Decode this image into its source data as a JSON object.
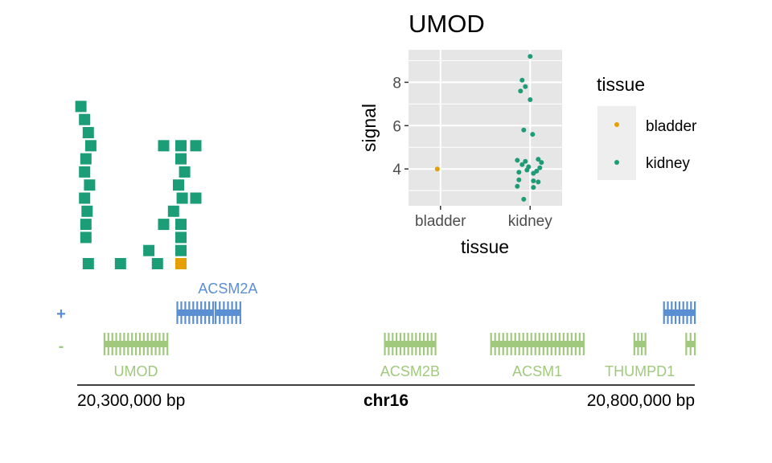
{
  "colors": {
    "bladder": "#E69F00",
    "kidney": "#1B9E77",
    "strand_plus": "#5B8FD3",
    "strand_minus": "#A1C97E",
    "panel_bg": "#E6E6E6",
    "legend_bg": "#EEEEEE"
  },
  "chart_data": [
    {
      "type": "scatter",
      "subtype": "locus-overview",
      "description_marks": "squares stacked by position along chromosome",
      "columns": [
        {
          "x": 186,
          "y": [
            1,
            2,
            3,
            4,
            5,
            6,
            7,
            8,
            9,
            10,
            11,
            12,
            13
          ],
          "tissue": [
            "kidney",
            "kidney",
            "kidney",
            "kidney",
            "kidney",
            "kidney",
            "kidney",
            "kidney",
            "kidney",
            "kidney",
            "kidney",
            "kidney",
            "kidney"
          ]
        }
      ],
      "marks": [
        {
          "x": 20303000,
          "level": 13,
          "tissue": "kidney"
        },
        {
          "x": 20306000,
          "level": 12,
          "tissue": "kidney"
        },
        {
          "x": 20309000,
          "level": 11,
          "tissue": "kidney"
        },
        {
          "x": 20311000,
          "level": 10,
          "tissue": "kidney"
        },
        {
          "x": 20307000,
          "level": 9,
          "tissue": "kidney"
        },
        {
          "x": 20306000,
          "level": 8,
          "tissue": "kidney"
        },
        {
          "x": 20310000,
          "level": 7,
          "tissue": "kidney"
        },
        {
          "x": 20306000,
          "level": 6,
          "tissue": "kidney"
        },
        {
          "x": 20308000,
          "level": 5,
          "tissue": "kidney"
        },
        {
          "x": 20307000,
          "level": 4,
          "tissue": "kidney"
        },
        {
          "x": 20307000,
          "level": 3,
          "tissue": "kidney"
        },
        {
          "x": 20309000,
          "level": 1,
          "tissue": "kidney"
        },
        {
          "x": 20335000,
          "level": 1,
          "tissue": "kidney"
        },
        {
          "x": 20358000,
          "level": 2,
          "tissue": "kidney"
        },
        {
          "x": 20365000,
          "level": 1,
          "tissue": "kidney"
        },
        {
          "x": 20384000,
          "level": 3,
          "tissue": "kidney"
        },
        {
          "x": 20370000,
          "level": 4,
          "tissue": "kidney"
        },
        {
          "x": 20378000,
          "level": 5,
          "tissue": "kidney"
        },
        {
          "x": 20385000,
          "level": 6,
          "tissue": "kidney"
        },
        {
          "x": 20382000,
          "level": 7,
          "tissue": "kidney"
        },
        {
          "x": 20387000,
          "level": 8,
          "tissue": "kidney"
        },
        {
          "x": 20384000,
          "level": 9,
          "tissue": "kidney"
        },
        {
          "x": 20396000,
          "level": 10,
          "tissue": "kidney"
        },
        {
          "x": 20384000,
          "level": 10,
          "tissue": "kidney"
        },
        {
          "x": 20370000,
          "level": 10,
          "tissue": "kidney"
        },
        {
          "x": 20384000,
          "level": 2,
          "tissue": "kidney"
        },
        {
          "x": 20396000,
          "level": 6,
          "tissue": "kidney"
        },
        {
          "x": 20384000,
          "level": 4,
          "tissue": "kidney"
        },
        {
          "x": 20384000,
          "level": 1,
          "tissue": "bladder"
        }
      ]
    },
    {
      "type": "scatter",
      "title": "UMOD",
      "xlabel": "tissue",
      "ylabel": "signal",
      "categories": [
        "bladder",
        "kidney"
      ],
      "ylim": [
        2.3,
        9.5
      ],
      "yticks": [
        4,
        6,
        8
      ],
      "grid": true,
      "legend": {
        "title": "tissue",
        "placement": "right",
        "entries": [
          "bladder",
          "kidney"
        ]
      },
      "series": [
        {
          "name": "bladder",
          "points": [
            {
              "x": "bladder",
              "y": 4.0
            }
          ]
        },
        {
          "name": "kidney",
          "points": [
            {
              "x": "kidney",
              "y": 9.2
            },
            {
              "x": "kidney",
              "y": 8.1
            },
            {
              "x": "kidney",
              "y": 7.8
            },
            {
              "x": "kidney",
              "y": 7.6
            },
            {
              "x": "kidney",
              "y": 7.2
            },
            {
              "x": "kidney",
              "y": 5.8
            },
            {
              "x": "kidney",
              "y": 5.6
            },
            {
              "x": "kidney",
              "y": 4.45
            },
            {
              "x": "kidney",
              "y": 4.4
            },
            {
              "x": "kidney",
              "y": 4.35
            },
            {
              "x": "kidney",
              "y": 4.3
            },
            {
              "x": "kidney",
              "y": 4.2
            },
            {
              "x": "kidney",
              "y": 4.1
            },
            {
              "x": "kidney",
              "y": 4.05
            },
            {
              "x": "kidney",
              "y": 3.95
            },
            {
              "x": "kidney",
              "y": 3.9
            },
            {
              "x": "kidney",
              "y": 3.85
            },
            {
              "x": "kidney",
              "y": 3.8
            },
            {
              "x": "kidney",
              "y": 3.5
            },
            {
              "x": "kidney",
              "y": 3.45
            },
            {
              "x": "kidney",
              "y": 3.4
            },
            {
              "x": "kidney",
              "y": 3.2
            },
            {
              "x": "kidney",
              "y": 3.15
            },
            {
              "x": "kidney",
              "y": 2.6
            }
          ]
        }
      ]
    }
  ],
  "genes": {
    "plus_label": "+",
    "minus_label": "-",
    "xlim": [
      20300000,
      20800000
    ],
    "items": [
      {
        "name": "ACSM2A",
        "strand": "+",
        "label": true,
        "start": 20412000,
        "end": 20432000
      },
      {
        "name": "",
        "strand": "+",
        "label": false,
        "start": 20381000,
        "end": 20410000
      },
      {
        "name": "",
        "strand": "+",
        "label": false,
        "start": 20775000,
        "end": 20800000
      },
      {
        "name": "UMOD",
        "strand": "-",
        "label": true,
        "start": 20322000,
        "end": 20373000
      },
      {
        "name": "ACSM2B",
        "strand": "-",
        "label": true,
        "start": 20549000,
        "end": 20590000
      },
      {
        "name": "ACSM1",
        "strand": "-",
        "label": true,
        "start": 20635000,
        "end": 20710000
      },
      {
        "name": "THUMPD1",
        "strand": "-",
        "label": true,
        "start": 20751000,
        "end": 20760000
      },
      {
        "name": "",
        "strand": "-",
        "label": false,
        "start": 20793000,
        "end": 20800000
      }
    ]
  },
  "axis": {
    "left_label": "20,300,000 bp",
    "center_label": "chr16",
    "right_label": "20,800,000 bp"
  }
}
